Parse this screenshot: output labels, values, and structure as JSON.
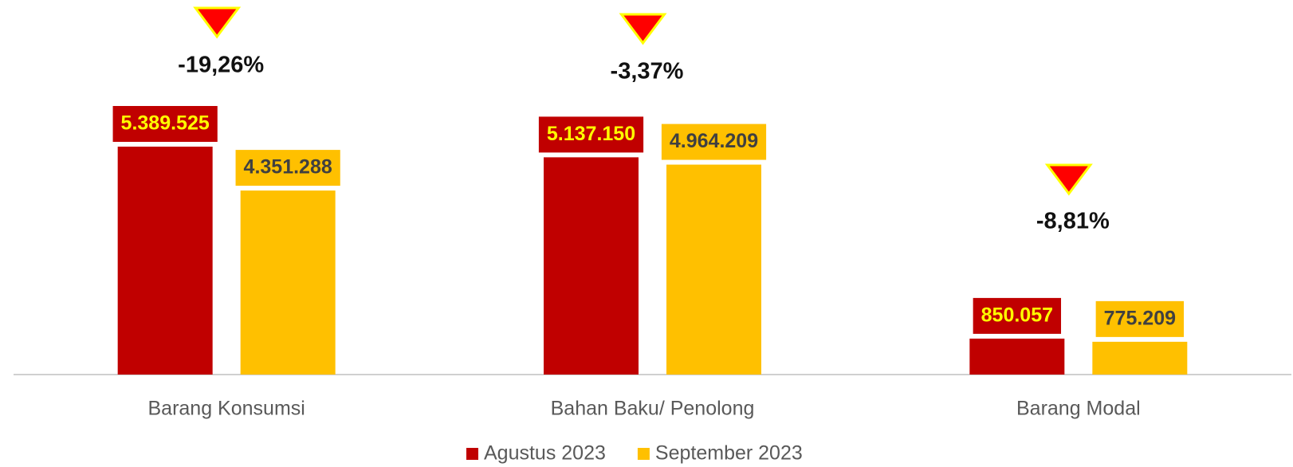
{
  "chart_data": {
    "type": "bar",
    "categories": [
      "Barang Konsumsi",
      "Bahan Baku/ Penolong",
      "Barang Modal"
    ],
    "series": [
      {
        "name": "Agustus 2023",
        "color": "#c00000",
        "values": [
          5389525,
          5137150,
          850057
        ],
        "value_labels": [
          "5.389.525",
          "5.137.150",
          "850.057"
        ]
      },
      {
        "name": "September 2023",
        "color": "#ffc000",
        "values": [
          4351288,
          4964209,
          775209
        ],
        "value_labels": [
          "4.351.288",
          "4.964.209",
          "775.209"
        ]
      }
    ],
    "annotations": [
      "-19,26%",
      "-3,37%",
      "-8,81%"
    ]
  }
}
